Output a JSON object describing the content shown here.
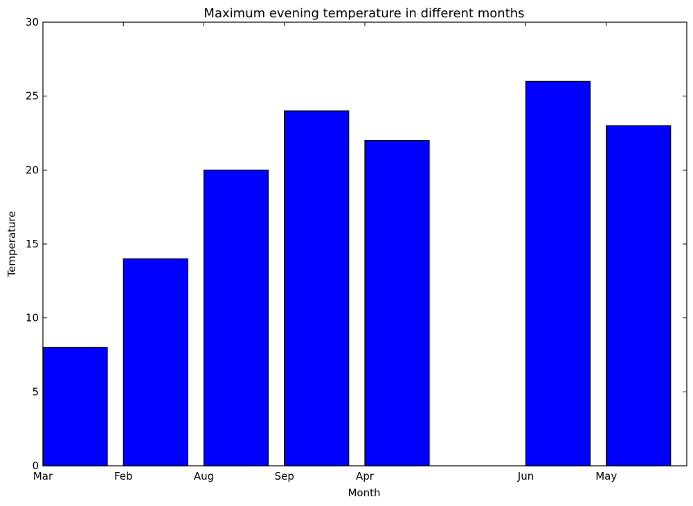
{
  "chart_data": {
    "type": "bar",
    "title": "Maximum evening temperature in different months",
    "xlabel": "Month",
    "ylabel": "Temperature",
    "ylim": [
      0,
      30
    ],
    "xlim": [
      0,
      8
    ],
    "yticks": [
      0,
      5,
      10,
      15,
      20,
      25,
      30
    ],
    "xticks": [
      {
        "label": "Mar",
        "x": 0
      },
      {
        "label": "Feb",
        "x": 1
      },
      {
        "label": "Aug",
        "x": 2
      },
      {
        "label": "Sep",
        "x": 3
      },
      {
        "label": "Apr",
        "x": 4
      },
      {
        "label": "Jun",
        "x": 6
      },
      {
        "label": "May",
        "x": 7
      }
    ],
    "bars": [
      {
        "x": 0,
        "value": 8
      },
      {
        "x": 1,
        "value": 14
      },
      {
        "x": 2,
        "value": 20
      },
      {
        "x": 3,
        "value": 24
      },
      {
        "x": 4,
        "value": 22
      },
      {
        "x": 6,
        "value": 26
      },
      {
        "x": 7,
        "value": 23
      }
    ],
    "bar_width": 0.8,
    "bar_color": "#0000ff",
    "edge_color": "#000000",
    "grid": false
  }
}
